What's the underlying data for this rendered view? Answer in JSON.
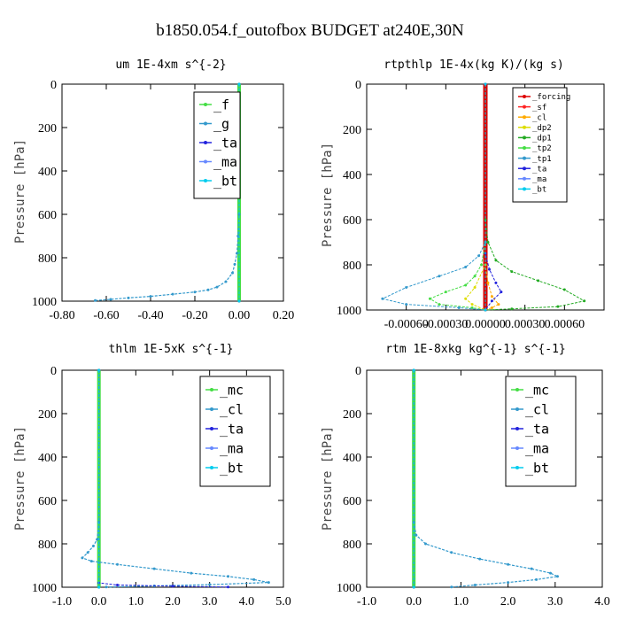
{
  "figure_title": "b1850.054.f_outofbox  BUDGET at240E,30N",
  "colors": {
    "_forcing": "#dd0000",
    "_sf": "#ff2222",
    "_cl": "#ffaa00",
    "_dp2": "#dddd00",
    "_dp1": "#22aa22",
    "_tp2": "#44dd44",
    "_tp1": "#3399cc",
    "_ta": "#2222dd",
    "_ma": "#6688ff",
    "_bt": "#00ccee",
    "_f": "#44dd44",
    "_g": "#3399cc",
    "_mc": "#44dd44",
    "_cl_blue": "#3399cc"
  },
  "chart_data": [
    {
      "type": "line",
      "title": "um  1E-4xm s^{-2}",
      "ylabel": "Pressure [hPa]",
      "xlim": [
        -0.8,
        0.2
      ],
      "ylim": [
        1000,
        0
      ],
      "x_ticks": [
        "-0.80",
        "-0.60",
        "-0.40",
        "-0.20",
        "0.00",
        "0.20"
      ],
      "x_tick_values": [
        -0.8,
        -0.6,
        -0.4,
        -0.2,
        0.0,
        0.2
      ],
      "y_ticks": [
        "0",
        "200",
        "400",
        "600",
        "800",
        "1000"
      ],
      "y_tick_values": [
        0,
        200,
        400,
        600,
        800,
        1000
      ],
      "legend": [
        "_f",
        "_g",
        "_ta",
        "_ma",
        "_bt"
      ],
      "legend_position": "top-right",
      "series": [
        {
          "name": "_f",
          "color_key": "_f",
          "width": 4,
          "points": [
            [
              0,
              0
            ],
            [
              0,
              100
            ],
            [
              0,
              200
            ],
            [
              0,
              300
            ],
            [
              0,
              400
            ],
            [
              0,
              500
            ],
            [
              0,
              600
            ],
            [
              0,
              700
            ],
            [
              0,
              800
            ],
            [
              0,
              900
            ],
            [
              0,
              1000
            ]
          ]
        },
        {
          "name": "_g",
          "color_key": "_g",
          "width": 1.2,
          "points": [
            [
              0,
              0
            ],
            [
              0,
              400
            ],
            [
              0,
              600
            ],
            [
              -0.005,
              700
            ],
            [
              -0.01,
              780
            ],
            [
              -0.02,
              830
            ],
            [
              -0.03,
              870
            ],
            [
              -0.06,
              910
            ],
            [
              -0.1,
              935
            ],
            [
              -0.14,
              948
            ],
            [
              -0.2,
              958
            ],
            [
              -0.3,
              968
            ],
            [
              -0.4,
              978
            ],
            [
              -0.5,
              985
            ],
            [
              -0.58,
              992
            ],
            [
              -0.65,
              997
            ]
          ]
        },
        {
          "name": "_ta",
          "color_key": "_ta",
          "width": 1,
          "points": [
            [
              0,
              0
            ],
            [
              0,
              1000
            ]
          ]
        },
        {
          "name": "_ma",
          "color_key": "_ma",
          "width": 1,
          "points": [
            [
              0,
              0
            ],
            [
              0,
              1000
            ]
          ]
        },
        {
          "name": "_bt",
          "color_key": "_bt",
          "width": 1,
          "points": [
            [
              0,
              0
            ],
            [
              0,
              1000
            ]
          ]
        }
      ]
    },
    {
      "type": "line",
      "title": "rtpthlp  1E-4x(kg K)/(kg s)",
      "ylabel": "Pressure [hPa]",
      "xlim": [
        -0.0009,
        0.0009
      ],
      "ylim": [
        1000,
        0
      ],
      "x_ticks": [
        "-0.00060",
        "-0.00030",
        "0.00000",
        "0.00030",
        "0.00060"
      ],
      "x_tick_values": [
        -0.0006,
        -0.0003,
        0.0,
        0.0003,
        0.0006
      ],
      "y_ticks": [
        "0",
        "200",
        "400",
        "600",
        "800",
        "1000"
      ],
      "y_tick_values": [
        0,
        200,
        400,
        600,
        800,
        1000
      ],
      "legend": [
        "_forcing",
        "_sf",
        "_cl",
        "_dp2",
        "_dp1",
        "_tp2",
        "_tp1",
        "_ta",
        "_ma",
        "_bt"
      ],
      "legend_position": "top-right",
      "series": [
        {
          "name": "_forcing",
          "color_key": "_forcing",
          "width": 5,
          "points": [
            [
              0,
              0
            ],
            [
              0,
              1000
            ]
          ]
        },
        {
          "name": "_sf",
          "color_key": "_sf",
          "width": 1,
          "points": [
            [
              0,
              0
            ],
            [
              0,
              1000
            ]
          ]
        },
        {
          "name": "_cl",
          "color_key": "_cl",
          "width": 1,
          "points": [
            [
              0,
              0
            ],
            [
              0,
              800
            ],
            [
              2e-05,
              880
            ],
            [
              5e-05,
              940
            ],
            [
              0.0001,
              975
            ],
            [
              5e-05,
              990
            ],
            [
              0,
              1000
            ]
          ]
        },
        {
          "name": "_dp2",
          "color_key": "_dp2",
          "width": 1,
          "points": [
            [
              0,
              0
            ],
            [
              0,
              800
            ],
            [
              -8e-05,
              900
            ],
            [
              -0.00015,
              950
            ],
            [
              -0.0001,
              975
            ],
            [
              0,
              1000
            ]
          ]
        },
        {
          "name": "_dp1",
          "color_key": "_dp1",
          "width": 1,
          "points": [
            [
              0,
              0
            ],
            [
              0,
              600
            ],
            [
              2e-05,
              700
            ],
            [
              8e-05,
              780
            ],
            [
              0.0002,
              830
            ],
            [
              0.0004,
              870
            ],
            [
              0.0006,
              910
            ],
            [
              0.00075,
              960
            ],
            [
              0.00055,
              985
            ],
            [
              0.0002,
              995
            ],
            [
              0,
              1000
            ]
          ]
        },
        {
          "name": "_tp2",
          "color_key": "_tp2",
          "width": 1,
          "points": [
            [
              0,
              0
            ],
            [
              0,
              700
            ],
            [
              -3e-05,
              800
            ],
            [
              -8e-05,
              850
            ],
            [
              -0.00015,
              890
            ],
            [
              -0.0003,
              920
            ],
            [
              -0.00042,
              950
            ],
            [
              -0.00035,
              975
            ],
            [
              -0.0001,
              990
            ],
            [
              0,
              1000
            ]
          ]
        },
        {
          "name": "_tp1",
          "color_key": "_tp1",
          "width": 1,
          "points": [
            [
              0,
              0
            ],
            [
              0,
              700
            ],
            [
              -5e-05,
              760
            ],
            [
              -0.00015,
              810
            ],
            [
              -0.00035,
              850
            ],
            [
              -0.0006,
              900
            ],
            [
              -0.00078,
              950
            ],
            [
              -0.0006,
              975
            ],
            [
              -0.0002,
              990
            ],
            [
              0,
              1000
            ]
          ]
        },
        {
          "name": "_ta",
          "color_key": "_ta",
          "width": 1,
          "points": [
            [
              0,
              0
            ],
            [
              0,
              750
            ],
            [
              3e-05,
              820
            ],
            [
              8e-05,
              880
            ],
            [
              0.00012,
              920
            ],
            [
              5e-05,
              960
            ],
            [
              0,
              1000
            ]
          ]
        },
        {
          "name": "_ma",
          "color_key": "_ma",
          "width": 1,
          "points": [
            [
              0,
              0
            ],
            [
              0,
              1000
            ]
          ]
        },
        {
          "name": "_bt",
          "color_key": "_bt",
          "width": 1,
          "points": [
            [
              0,
              0
            ],
            [
              0,
              1000
            ]
          ]
        }
      ]
    },
    {
      "type": "line",
      "title": "thlm  1E-5xK s^{-1}",
      "ylabel": "Pressure [hPa]",
      "xlim": [
        -1.0,
        5.0
      ],
      "ylim": [
        1000,
        0
      ],
      "x_ticks": [
        "-1.0",
        "0.0",
        "1.0",
        "2.0",
        "3.0",
        "4.0",
        "5.0"
      ],
      "x_tick_values": [
        -1,
        0,
        1,
        2,
        3,
        4,
        5
      ],
      "y_ticks": [
        "0",
        "200",
        "400",
        "600",
        "800",
        "1000"
      ],
      "y_tick_values": [
        0,
        200,
        400,
        600,
        800,
        1000
      ],
      "legend": [
        "_mc",
        "_cl",
        "_ta",
        "_ma",
        "_bt"
      ],
      "legend_position": "top-right",
      "series": [
        {
          "name": "_mc",
          "color_key": "_mc",
          "width": 4,
          "points": [
            [
              0,
              0
            ],
            [
              0,
              100
            ],
            [
              0,
              200
            ],
            [
              0,
              300
            ],
            [
              0,
              400
            ],
            [
              0,
              500
            ],
            [
              0,
              600
            ],
            [
              0,
              700
            ],
            [
              0,
              800
            ],
            [
              0,
              900
            ],
            [
              0,
              1000
            ]
          ]
        },
        {
          "name": "_cl",
          "color_key": "_cl_blue",
          "width": 1.2,
          "points": [
            [
              0,
              0
            ],
            [
              0,
              700
            ],
            [
              -0.05,
              780
            ],
            [
              -0.15,
              810
            ],
            [
              -0.3,
              840
            ],
            [
              -0.45,
              865
            ],
            [
              -0.2,
              880
            ],
            [
              0.5,
              895
            ],
            [
              1.5,
              915
            ],
            [
              2.5,
              935
            ],
            [
              3.5,
              950
            ],
            [
              4.2,
              965
            ],
            [
              4.6,
              978
            ],
            [
              3.0,
              988
            ],
            [
              1.5,
              994
            ],
            [
              0.2,
              999
            ]
          ]
        },
        {
          "name": "_ta",
          "color_key": "_ta",
          "width": 1,
          "points": [
            [
              0,
              0
            ],
            [
              0,
              980
            ],
            [
              0.5,
              990
            ],
            [
              2.0,
              995
            ],
            [
              3.5,
              999
            ]
          ]
        },
        {
          "name": "_ma",
          "color_key": "_ma",
          "width": 1,
          "points": [
            [
              0,
              0
            ],
            [
              0,
              1000
            ]
          ]
        },
        {
          "name": "_bt",
          "color_key": "_bt",
          "width": 1,
          "points": [
            [
              0,
              0
            ],
            [
              0,
              1000
            ]
          ]
        }
      ]
    },
    {
      "type": "line",
      "title": "rtm  1E-8xkg kg^{-1} s^{-1}",
      "ylabel": "Pressure [hPa]",
      "xlim": [
        -1.0,
        4.0
      ],
      "ylim": [
        1000,
        0
      ],
      "x_ticks": [
        "-1.0",
        "0.0",
        "1.0",
        "2.0",
        "3.0",
        "4.0"
      ],
      "x_tick_values": [
        -1,
        0,
        1,
        2,
        3,
        4
      ],
      "y_ticks": [
        "0",
        "200",
        "400",
        "600",
        "800",
        "1000"
      ],
      "y_tick_values": [
        0,
        200,
        400,
        600,
        800,
        1000
      ],
      "legend": [
        "_mc",
        "_cl",
        "_ta",
        "_ma",
        "_bt"
      ],
      "legend_position": "top-right",
      "series": [
        {
          "name": "_mc",
          "color_key": "_mc",
          "width": 4,
          "points": [
            [
              0,
              0
            ],
            [
              0,
              100
            ],
            [
              0,
              200
            ],
            [
              0,
              300
            ],
            [
              0,
              400
            ],
            [
              0,
              500
            ],
            [
              0,
              600
            ],
            [
              0,
              700
            ],
            [
              0,
              800
            ],
            [
              0,
              900
            ],
            [
              0,
              1000
            ]
          ]
        },
        {
          "name": "_cl",
          "color_key": "_cl_blue",
          "width": 1.2,
          "points": [
            [
              0,
              0
            ],
            [
              0,
              700
            ],
            [
              0.05,
              760
            ],
            [
              0.25,
              800
            ],
            [
              0.8,
              840
            ],
            [
              1.4,
              870
            ],
            [
              2.0,
              895
            ],
            [
              2.5,
              915
            ],
            [
              2.9,
              935
            ],
            [
              3.05,
              950
            ],
            [
              2.6,
              965
            ],
            [
              2.0,
              978
            ],
            [
              1.3,
              990
            ],
            [
              0.8,
              999
            ]
          ]
        },
        {
          "name": "_ta",
          "color_key": "_ta",
          "width": 1,
          "points": [
            [
              0,
              0
            ],
            [
              0,
              1000
            ]
          ]
        },
        {
          "name": "_ma",
          "color_key": "_ma",
          "width": 1,
          "points": [
            [
              0,
              0
            ],
            [
              0,
              1000
            ]
          ]
        },
        {
          "name": "_bt",
          "color_key": "_bt",
          "width": 1,
          "points": [
            [
              0,
              0
            ],
            [
              0,
              1000
            ]
          ]
        }
      ]
    }
  ]
}
